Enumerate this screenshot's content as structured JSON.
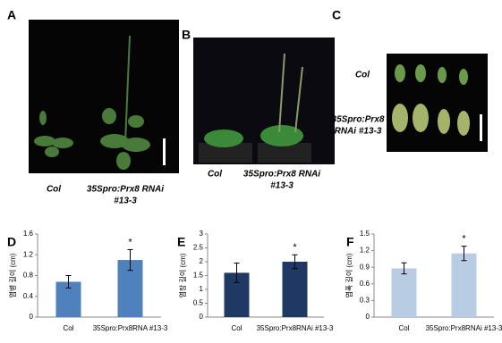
{
  "photo_panels": [
    {
      "label": "A",
      "captions": [
        "Col",
        "35Spro:Prx8  RNAi",
        "#13-3"
      ]
    },
    {
      "label": "B",
      "captions": [
        "Col",
        "35Spro:Prx8  RNAi",
        "#13-3"
      ]
    },
    {
      "label": "C",
      "captions": [
        "Col",
        "35Spro:Prx8",
        "RNAi #13-3"
      ]
    }
  ],
  "chart_data": [
    {
      "type": "bar",
      "panel_label": "D",
      "y_label": "엽병 길이 (cm)",
      "categories": [
        "Col",
        "35Spro:Prx8RNA #13-3"
      ],
      "values": [
        0.68,
        1.1
      ],
      "errors": [
        0.12,
        0.2
      ],
      "significance": [
        null,
        "*"
      ],
      "color": "#4f81bd",
      "ylim": [
        0,
        1.6
      ],
      "yticks": [
        0,
        0.4,
        0.8,
        1.2,
        1.6
      ]
    },
    {
      "type": "bar",
      "panel_label": "E",
      "y_label": "엽장 길이 (cm)",
      "categories": [
        "Col",
        "35Spro:Prx8RNAi #13-3"
      ],
      "values": [
        1.6,
        2.0
      ],
      "errors": [
        0.35,
        0.25
      ],
      "significance": [
        null,
        "*"
      ],
      "color": "#1f3864",
      "ylim": [
        0,
        3
      ],
      "yticks": [
        0,
        0.5,
        1,
        1.5,
        2,
        2.5,
        3
      ]
    },
    {
      "type": "bar",
      "panel_label": "F",
      "y_label": "엽폭 길이 (cm)",
      "categories": [
        "Col",
        "35Spro:Prx8RNAi #13-3"
      ],
      "values": [
        0.88,
        1.15
      ],
      "errors": [
        0.1,
        0.13
      ],
      "significance": [
        null,
        "*"
      ],
      "color": "#b8cce4",
      "ylim": [
        0,
        1.5
      ],
      "yticks": [
        0,
        0.3,
        0.6,
        0.9,
        1.2,
        1.5
      ]
    }
  ]
}
